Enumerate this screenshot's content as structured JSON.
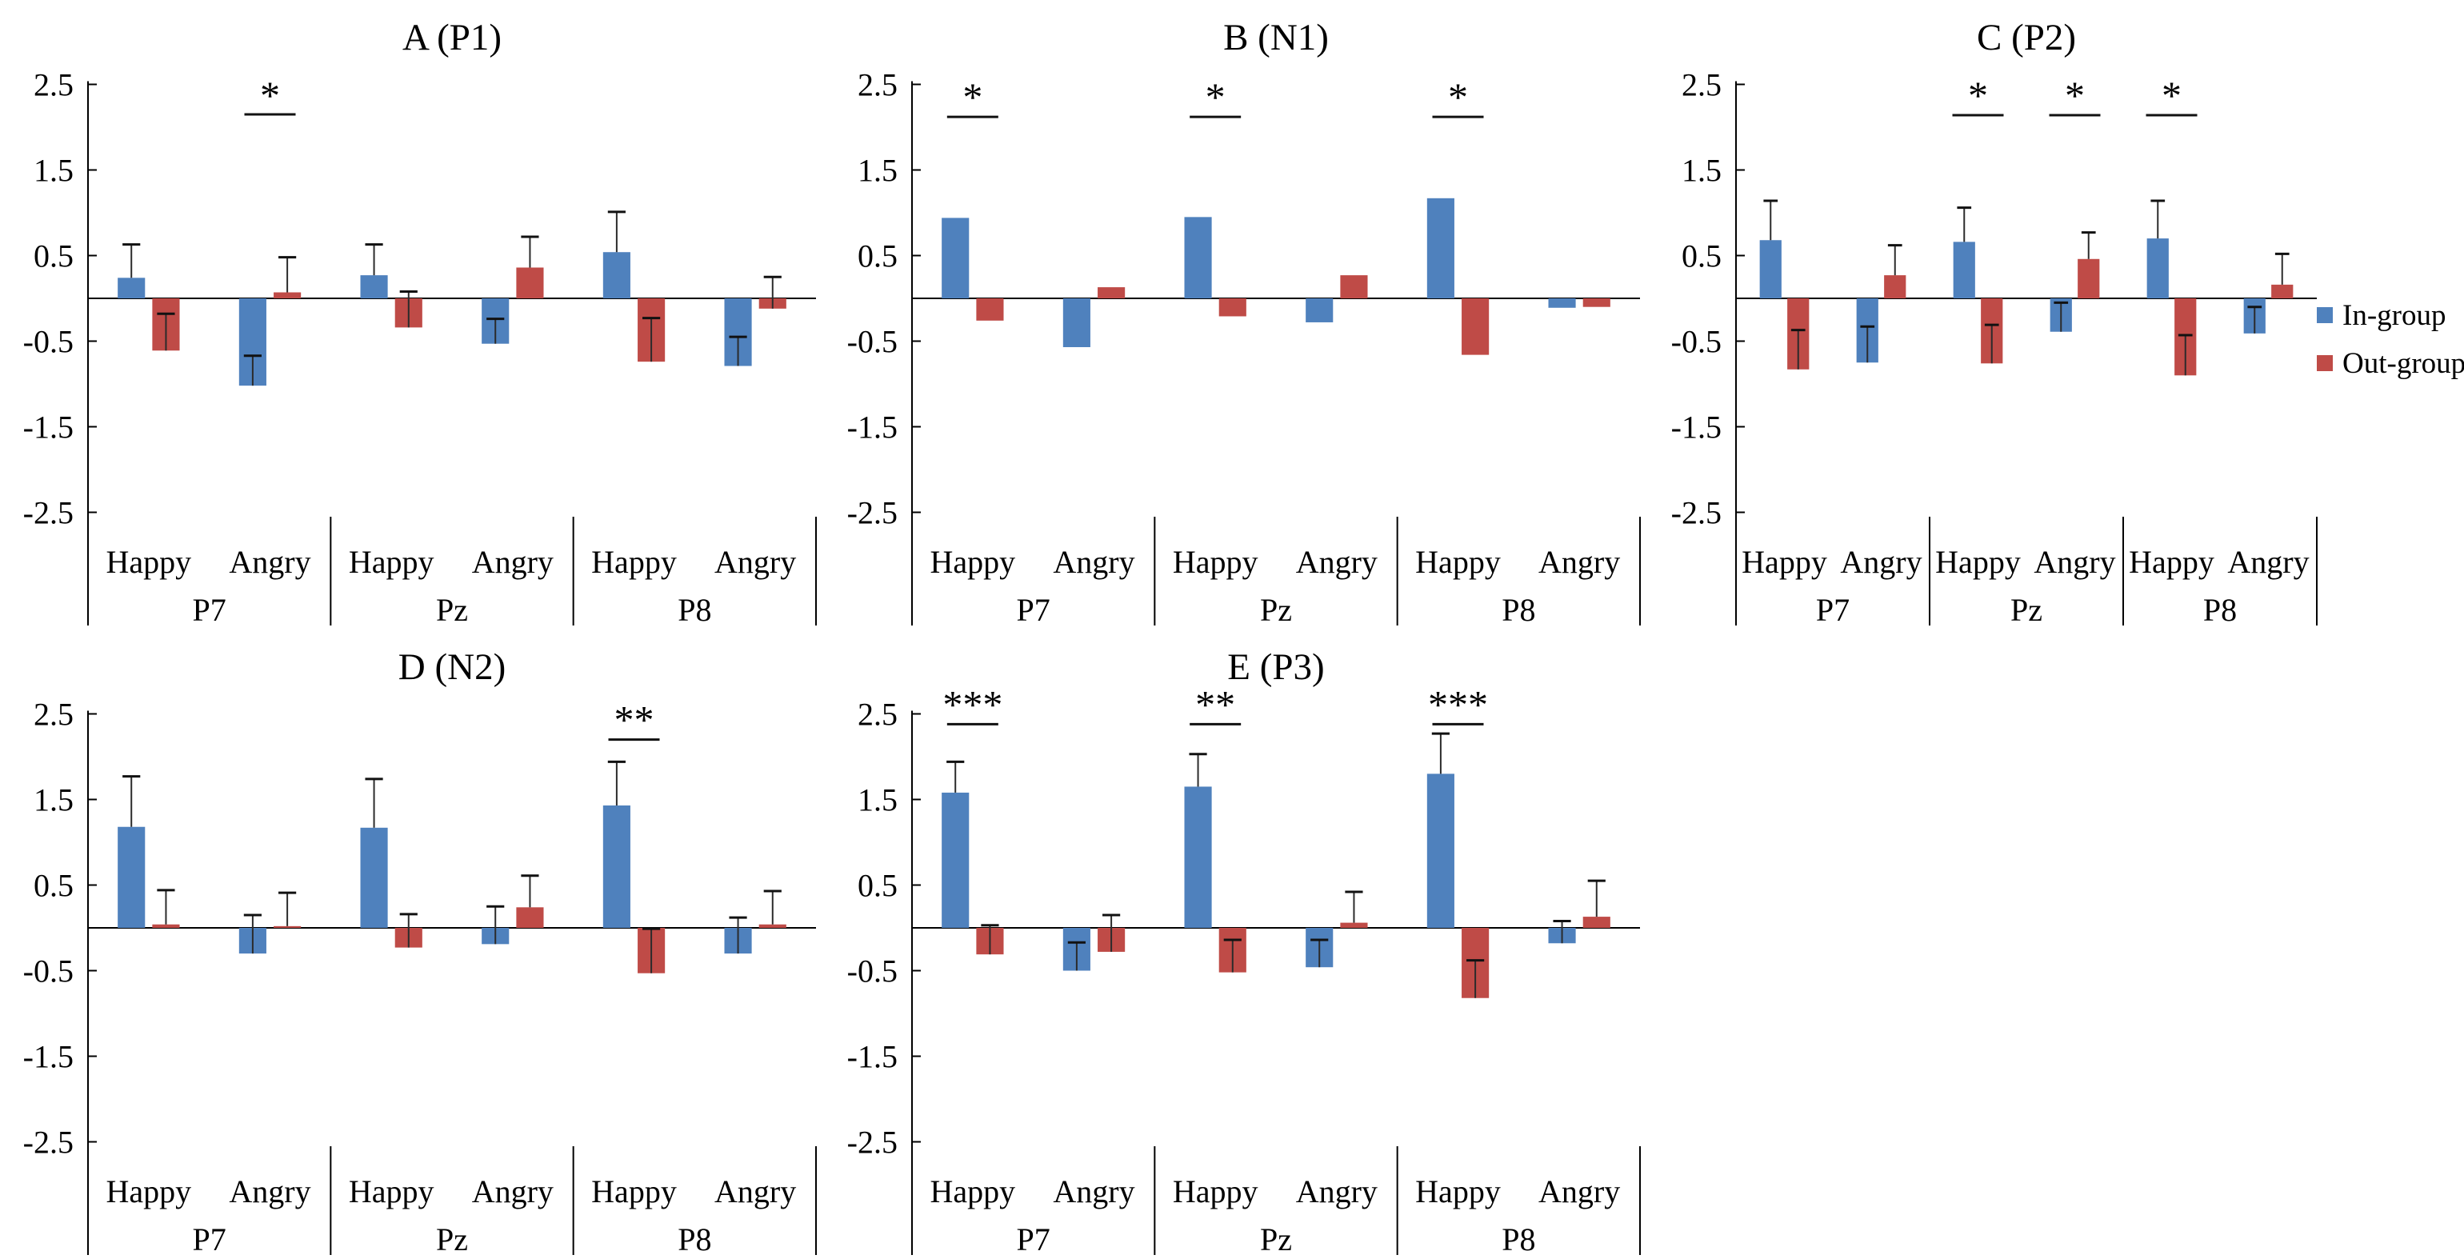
{
  "figure": {
    "background": "#ffffff"
  },
  "colors": {
    "in_group": "#4f81bd",
    "out_group": "#bf4b47",
    "axis": "#000000",
    "error_bar": "#2b2b2b"
  },
  "legend": {
    "items": [
      {
        "label": "In-group",
        "color": "#4f81bd"
      },
      {
        "label": "Out-group",
        "color": "#bf4b47"
      }
    ]
  },
  "y_axis": {
    "tick_labels": [
      "2.5",
      "1.5",
      "0.5",
      "-0.5",
      "-1.5",
      "-2.5"
    ],
    "tick_values": [
      2.5,
      1.5,
      0.5,
      -0.5,
      -1.5,
      -2.5
    ],
    "min": -2.5,
    "max": 2.5
  },
  "x_axis": {
    "emotions": [
      "Happy",
      "Angry"
    ],
    "electrodes": [
      "P7",
      "Pz",
      "P8"
    ]
  },
  "chart_data": [
    {
      "key": "A",
      "title": "A (P1)",
      "component": "P1",
      "type": "bar",
      "categories": [
        "P7 Happy",
        "P7 Angry",
        "Pz Happy",
        "Pz Angry",
        "P8 Happy",
        "P8 Angry"
      ],
      "ylim": [
        -2.5,
        2.5
      ],
      "has_error_bars": true,
      "series": [
        {
          "name": "In-group",
          "values": [
            0.24,
            -1.02,
            0.27,
            -0.53,
            0.54,
            -0.79
          ],
          "error_tips": [
            0.63,
            -0.67,
            0.63,
            -0.24,
            1.01,
            -0.45
          ]
        },
        {
          "name": "Out-group",
          "values": [
            -0.61,
            0.07,
            -0.34,
            0.36,
            -0.74,
            -0.12
          ],
          "error_tips": [
            -0.18,
            0.48,
            0.08,
            0.72,
            -0.23,
            0.25
          ]
        }
      ],
      "significance": [
        {
          "pair_index": 1,
          "label": "*"
        }
      ],
      "sig_line_value": 2.15,
      "sig_label_value": 2.42
    },
    {
      "key": "B",
      "title": "B (N1)",
      "component": "N1",
      "type": "bar",
      "categories": [
        "P7 Happy",
        "P7 Angry",
        "Pz Happy",
        "Pz Angry",
        "P8 Happy",
        "P8 Angry"
      ],
      "ylim": [
        -2.5,
        2.5
      ],
      "has_error_bars": false,
      "series": [
        {
          "name": "In-group",
          "values": [
            0.94,
            -0.57,
            0.95,
            -0.28,
            1.17,
            -0.11
          ],
          "error_tips": null
        },
        {
          "name": "Out-group",
          "values": [
            -0.26,
            0.13,
            -0.21,
            0.27,
            -0.66,
            -0.1
          ],
          "error_tips": null
        }
      ],
      "significance": [
        {
          "pair_index": 0,
          "label": "*"
        },
        {
          "pair_index": 2,
          "label": "*"
        },
        {
          "pair_index": 4,
          "label": "*"
        }
      ],
      "sig_line_value": 2.12,
      "sig_label_value": 2.4
    },
    {
      "key": "C",
      "title": "C (P2)",
      "component": "P2",
      "type": "bar",
      "categories": [
        "P7 Happy",
        "P7 Angry",
        "Pz Happy",
        "Pz Angry",
        "P8 Happy",
        "P8 Angry"
      ],
      "ylim": [
        -2.5,
        2.5
      ],
      "has_error_bars": true,
      "series": [
        {
          "name": "In-group",
          "values": [
            0.68,
            -0.75,
            0.66,
            -0.39,
            0.7,
            -0.41
          ],
          "error_tips": [
            1.14,
            -0.33,
            1.06,
            -0.05,
            1.14,
            -0.1
          ]
        },
        {
          "name": "Out-group",
          "values": [
            -0.83,
            0.27,
            -0.76,
            0.46,
            -0.9,
            0.16
          ],
          "error_tips": [
            -0.37,
            0.62,
            -0.31,
            0.77,
            -0.43,
            0.52
          ]
        }
      ],
      "significance": [
        {
          "pair_index": 2,
          "label": "*"
        },
        {
          "pair_index": 3,
          "label": "*"
        },
        {
          "pair_index": 4,
          "label": "*"
        }
      ],
      "sig_line_value": 2.14,
      "sig_label_value": 2.42
    },
    {
      "key": "D",
      "title": "D (N2)",
      "component": "N2",
      "type": "bar",
      "categories": [
        "P7 Happy",
        "P7 Angry",
        "Pz Happy",
        "Pz Angry",
        "P8 Happy",
        "P8 Angry"
      ],
      "ylim": [
        -2.5,
        2.5
      ],
      "has_error_bars": true,
      "series": [
        {
          "name": "In-group",
          "values": [
            1.18,
            -0.3,
            1.17,
            -0.19,
            1.43,
            -0.3
          ],
          "error_tips": [
            1.77,
            0.15,
            1.74,
            0.25,
            1.94,
            0.12
          ]
        },
        {
          "name": "Out-group",
          "values": [
            0.04,
            0.02,
            -0.23,
            0.24,
            -0.53,
            0.04
          ],
          "error_tips": [
            0.44,
            0.41,
            0.16,
            0.61,
            -0.01,
            0.43
          ]
        }
      ],
      "significance": [
        {
          "pair_index": 4,
          "label": "**"
        }
      ],
      "sig_line_value": 2.2,
      "sig_label_value": 2.48
    },
    {
      "key": "E",
      "title": "E (P3)",
      "component": "P3",
      "type": "bar",
      "categories": [
        "P7 Happy",
        "P7 Angry",
        "Pz Happy",
        "Pz Angry",
        "P8 Happy",
        "P8 Angry"
      ],
      "ylim": [
        -2.5,
        2.5
      ],
      "has_error_bars": true,
      "series": [
        {
          "name": "In-group",
          "values": [
            1.58,
            -0.5,
            1.65,
            -0.46,
            1.8,
            -0.18
          ],
          "error_tips": [
            1.94,
            -0.17,
            2.03,
            -0.14,
            2.27,
            0.08
          ]
        },
        {
          "name": "Out-group",
          "values": [
            -0.31,
            -0.28,
            -0.52,
            0.06,
            -0.82,
            0.13
          ],
          "error_tips": [
            0.03,
            0.15,
            -0.14,
            0.42,
            -0.38,
            0.55
          ]
        }
      ],
      "significance": [
        {
          "pair_index": 0,
          "label": "***"
        },
        {
          "pair_index": 2,
          "label": "**"
        },
        {
          "pair_index": 4,
          "label": "***"
        }
      ],
      "sig_line_value": 2.38,
      "sig_label_value": 2.66
    }
  ]
}
